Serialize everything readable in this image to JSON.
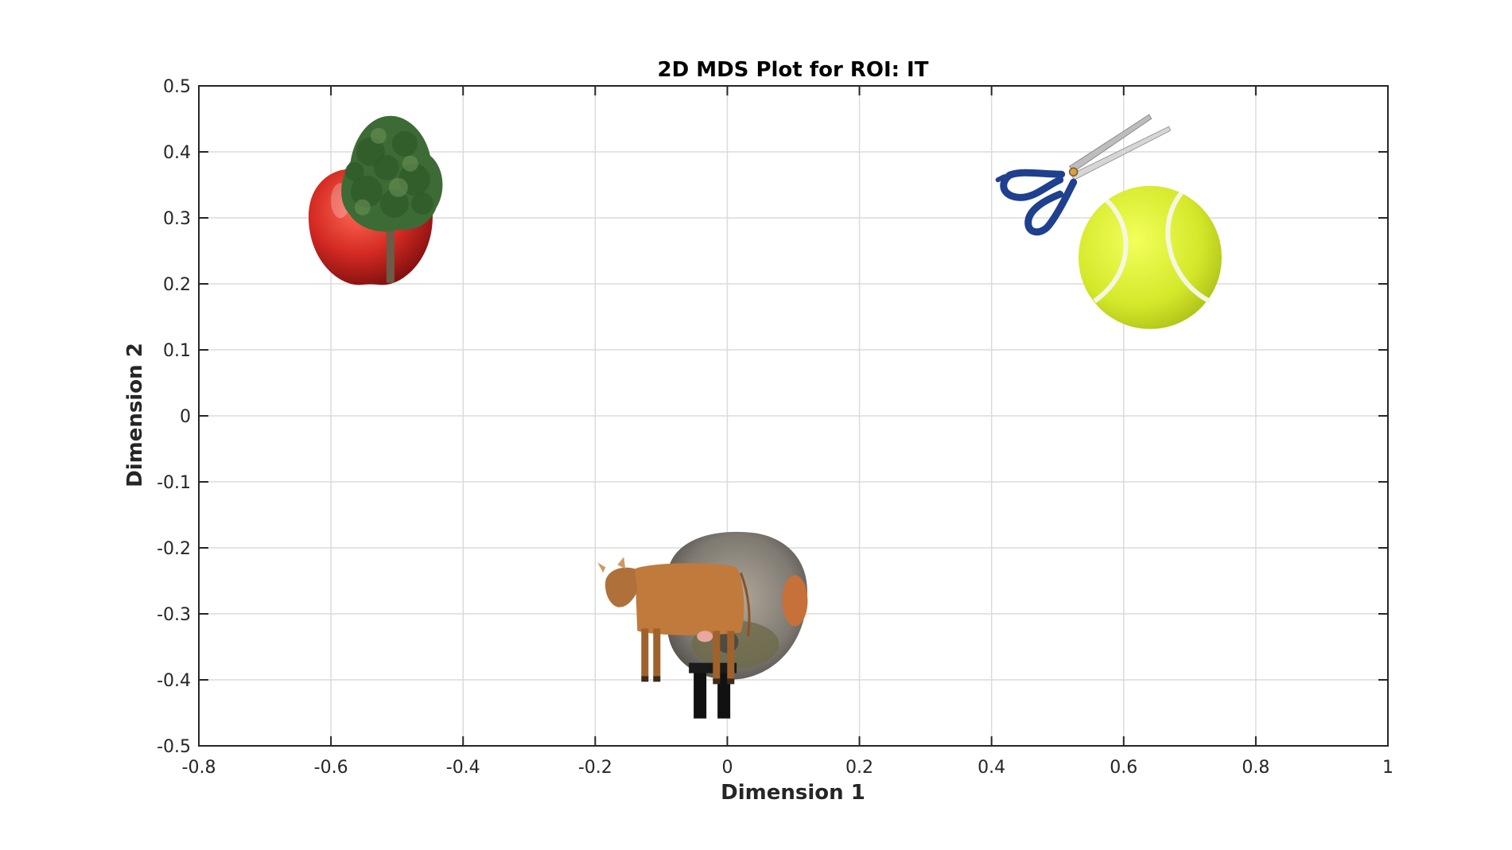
{
  "chart_data": {
    "type": "scatter",
    "title": "2D MDS Plot for ROI: IT",
    "xlabel": "Dimension 1",
    "ylabel": "Dimension 2",
    "xlim": [
      -0.8,
      1
    ],
    "ylim": [
      -0.5,
      0.5
    ],
    "xticks": [
      -0.8,
      -0.6,
      -0.4,
      -0.2,
      0,
      0.2,
      0.4,
      0.6,
      0.8,
      1
    ],
    "yticks": [
      -0.5,
      -0.4,
      -0.3,
      -0.2,
      -0.1,
      0,
      0.1,
      0.2,
      0.3,
      0.4,
      0.5
    ],
    "xtick_labels": [
      "-0.8",
      "-0.6",
      "-0.4",
      "-0.2",
      "0",
      "0.2",
      "0.4",
      "0.6",
      "0.8",
      "1"
    ],
    "ytick_labels": [
      "-0.5",
      "-0.4",
      "-0.3",
      "-0.2",
      "-0.1",
      "0",
      "0.1",
      "0.2",
      "0.3",
      "0.4",
      "0.5"
    ],
    "grid": true,
    "markers": "image-thumbnails",
    "points": [
      {
        "icon": "apple-icon",
        "x": -0.54,
        "y": 0.29
      },
      {
        "icon": "tree-icon",
        "x": -0.51,
        "y": 0.34
      },
      {
        "icon": "scissors-icon",
        "x": 0.53,
        "y": 0.36
      },
      {
        "icon": "tennis-ball-icon",
        "x": 0.64,
        "y": 0.24
      },
      {
        "icon": "bird-icon",
        "x": 0.0,
        "y": -0.28
      },
      {
        "icon": "cow-icon",
        "x": -0.07,
        "y": -0.28
      },
      {
        "icon": "dog-icon",
        "x": -0.01,
        "y": -0.42
      }
    ],
    "colors": {
      "axes": "#262626",
      "grid": "#dbdbdb",
      "apple": "#d42a23",
      "tree": "#3d6b35",
      "scissors": "#1f3f8f",
      "tennis_ball": "#d4e82a",
      "cow": "#c07a3c",
      "bird": "#8c8c8c"
    }
  }
}
